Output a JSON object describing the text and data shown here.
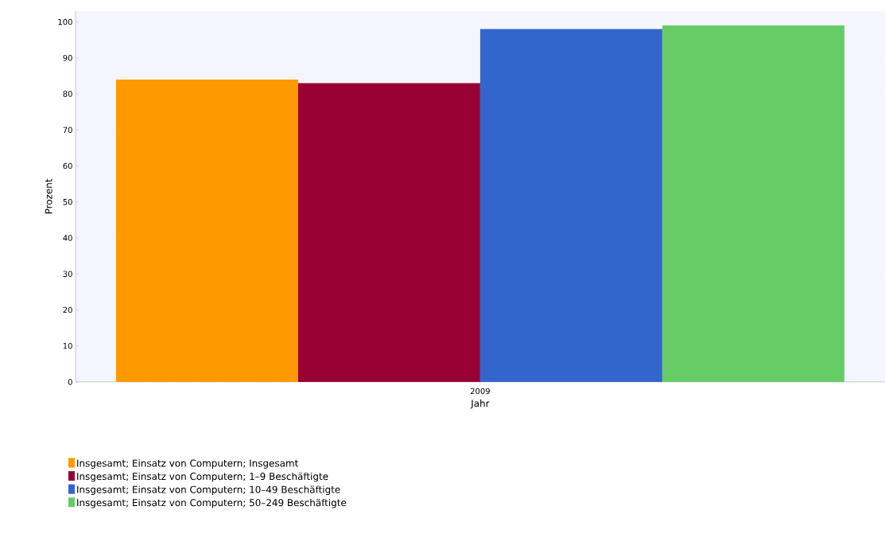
{
  "chart_data": {
    "type": "bar",
    "xlabel": "Jahr",
    "ylabel": "Prozent",
    "categories": [
      "2009"
    ],
    "series": [
      {
        "name": "Insgesamt; Einsatz von Computern; Insgesamt",
        "color": "#ff9900",
        "values": [
          84
        ]
      },
      {
        "name": "Insgesamt; Einsatz von Computern; 1–9 Beschäftigte",
        "color": "#990033",
        "values": [
          83
        ]
      },
      {
        "name": "Insgesamt; Einsatz von Computern; 10–49 Beschäftigte",
        "color": "#3366cc",
        "values": [
          98
        ]
      },
      {
        "name": "Insgesamt; Einsatz von Computern; 50–249 Beschäftigte",
        "color": "#66cc66",
        "values": [
          99
        ]
      }
    ],
    "ylim": [
      0,
      103
    ],
    "yticks": [
      0,
      10,
      20,
      30,
      40,
      50,
      60,
      70,
      80,
      90,
      100
    ],
    "grid": "y",
    "legend": "bottom"
  }
}
